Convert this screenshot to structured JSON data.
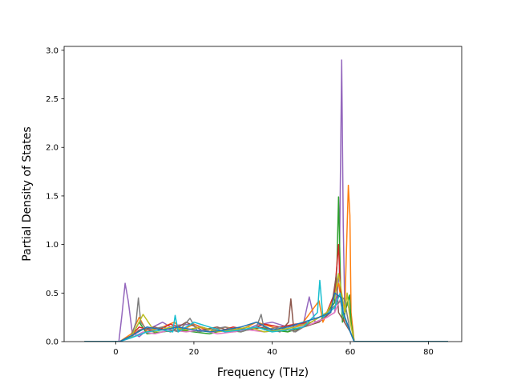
{
  "chart_data": {
    "type": "line",
    "title": "",
    "xlabel": "Frequency (THz)",
    "ylabel": "Partial Density of States",
    "xlim": [
      -13.2,
      88.5
    ],
    "ylim": [
      0,
      3.04
    ],
    "x_ticks": [
      0,
      20,
      40,
      60,
      80
    ],
    "x_tick_labels": [
      "0",
      "20",
      "40",
      "60",
      "80"
    ],
    "y_ticks": [
      0.0,
      0.5,
      1.0,
      1.5,
      2.0,
      2.5,
      3.0
    ],
    "y_tick_labels": [
      "0.0",
      "0.5",
      "1.0",
      "1.5",
      "2.0",
      "2.5",
      "3.0"
    ],
    "grid": false,
    "legend": "none",
    "colors": [
      "#1f77b4",
      "#ff7f0e",
      "#2ca02c",
      "#d62728",
      "#9467bd",
      "#8c564b",
      "#e377c2",
      "#7f7f7f",
      "#bcbd22",
      "#17becf"
    ],
    "x_range_plotted": [
      -8,
      85
    ],
    "series": [
      {
        "color": "#9467bd",
        "x": [
          -8,
          0.8,
          1.6,
          2.4,
          3.2,
          4.2,
          6,
          8,
          12,
          14,
          16,
          20,
          24,
          28,
          32,
          36,
          40,
          44,
          48,
          49.5,
          51,
          54,
          56,
          57.2,
          57.8,
          58.2,
          58.6,
          59.2,
          60,
          61,
          85
        ],
        "y": [
          0,
          0,
          0.28,
          0.6,
          0.42,
          0.1,
          0.05,
          0.12,
          0.2,
          0.15,
          0.17,
          0.18,
          0.12,
          0.15,
          0.1,
          0.17,
          0.2,
          0.15,
          0.18,
          0.46,
          0.2,
          0.25,
          0.3,
          0.7,
          2.9,
          1.2,
          0.3,
          0.4,
          0.3,
          0,
          0
        ]
      },
      {
        "color": "#ff7f0e",
        "x": [
          -8,
          1,
          4,
          6,
          8,
          12,
          15,
          17,
          20,
          24,
          28,
          32,
          36,
          40,
          44,
          48,
          52,
          53,
          55,
          57,
          58.5,
          59.5,
          59.9,
          60.2,
          61,
          85
        ],
        "y": [
          0,
          0,
          0.08,
          0.25,
          0.1,
          0.15,
          0.2,
          0.12,
          0.18,
          0.1,
          0.15,
          0.12,
          0.2,
          0.15,
          0.1,
          0.2,
          0.42,
          0.2,
          0.38,
          0.6,
          0.2,
          1.61,
          1.3,
          0.3,
          0,
          0
        ]
      },
      {
        "color": "#2ca02c",
        "x": [
          -8,
          1,
          4,
          6,
          8,
          12,
          16,
          20,
          24,
          28,
          32,
          36,
          40,
          44,
          48,
          52,
          54,
          56,
          56.6,
          57,
          57.5,
          58,
          59.8,
          60.2,
          61,
          85
        ],
        "y": [
          0,
          0,
          0.05,
          0.2,
          0.08,
          0.1,
          0.12,
          0.1,
          0.08,
          0.12,
          0.1,
          0.15,
          0.12,
          0.1,
          0.15,
          0.2,
          0.3,
          0.4,
          0.8,
          1.49,
          0.6,
          0.2,
          0.48,
          0.2,
          0,
          0
        ]
      },
      {
        "color": "#d62728",
        "x": [
          -8,
          1,
          4,
          6,
          10,
          14,
          18,
          22,
          26,
          30,
          34,
          38,
          42,
          46,
          50,
          54,
          56,
          57,
          57.6,
          58,
          60,
          61,
          85
        ],
        "y": [
          0,
          0,
          0.06,
          0.15,
          0.1,
          0.18,
          0.12,
          0.15,
          0.1,
          0.15,
          0.12,
          0.18,
          0.15,
          0.18,
          0.2,
          0.3,
          0.5,
          1.0,
          0.4,
          0.3,
          0.1,
          0,
          0
        ]
      },
      {
        "color": "#8c564b",
        "x": [
          -8,
          1,
          4,
          6,
          10,
          14,
          18,
          22,
          26,
          30,
          34,
          38,
          42,
          44.2,
          44.8,
          45.6,
          48,
          52,
          55,
          56.4,
          57,
          60,
          61,
          85
        ],
        "y": [
          0,
          0,
          0.05,
          0.12,
          0.15,
          0.1,
          0.2,
          0.12,
          0.15,
          0.1,
          0.12,
          0.15,
          0.1,
          0.2,
          0.44,
          0.1,
          0.15,
          0.2,
          0.3,
          0.68,
          0.3,
          0.1,
          0,
          0
        ]
      },
      {
        "color": "#e377c2",
        "x": [
          -8,
          1,
          4,
          7,
          10,
          14,
          18,
          22,
          26,
          30,
          34,
          38,
          42,
          46,
          50,
          54,
          56,
          57.6,
          58,
          60,
          61,
          85
        ],
        "y": [
          0,
          0,
          0.04,
          0.1,
          0.08,
          0.12,
          0.1,
          0.12,
          0.08,
          0.1,
          0.12,
          0.1,
          0.12,
          0.15,
          0.18,
          0.25,
          0.3,
          0.45,
          0.3,
          0.1,
          0,
          0
        ]
      },
      {
        "color": "#7f7f7f",
        "x": [
          -8,
          1,
          4,
          5.2,
          5.8,
          6.4,
          8,
          12,
          16,
          19,
          21,
          24,
          28,
          32,
          36,
          37.2,
          38,
          42,
          46,
          50,
          54,
          57,
          58.4,
          60,
          61,
          85
        ],
        "y": [
          0,
          0,
          0.06,
          0.2,
          0.45,
          0.2,
          0.12,
          0.15,
          0.1,
          0.24,
          0.1,
          0.12,
          0.15,
          0.1,
          0.15,
          0.28,
          0.12,
          0.15,
          0.1,
          0.2,
          0.3,
          0.4,
          0.45,
          0.1,
          0,
          0
        ]
      },
      {
        "color": "#bcbd22",
        "x": [
          -8,
          1,
          4,
          7,
          10,
          14,
          18,
          22,
          26,
          30,
          34,
          38,
          42,
          46,
          50,
          54,
          56,
          57,
          58.6,
          59.2,
          60,
          61,
          85
        ],
        "y": [
          0,
          0,
          0.05,
          0.28,
          0.1,
          0.15,
          0.12,
          0.15,
          0.1,
          0.12,
          0.15,
          0.1,
          0.12,
          0.15,
          0.2,
          0.3,
          0.45,
          0.7,
          0.3,
          0.5,
          0.2,
          0,
          0
        ]
      },
      {
        "color": "#17becf",
        "x": [
          -8,
          1,
          4,
          8,
          12,
          14.6,
          15.2,
          16,
          20,
          24,
          28,
          32,
          36,
          40,
          44,
          48,
          51.6,
          52.2,
          53,
          56,
          57.4,
          58,
          60,
          61,
          85
        ],
        "y": [
          0,
          0,
          0.04,
          0.1,
          0.12,
          0.1,
          0.27,
          0.1,
          0.2,
          0.15,
          0.1,
          0.12,
          0.15,
          0.1,
          0.12,
          0.15,
          0.3,
          0.63,
          0.25,
          0.35,
          0.5,
          0.3,
          0.1,
          0,
          0
        ]
      },
      {
        "color": "#1f77b4",
        "x": [
          -8,
          1,
          4,
          8,
          12,
          16,
          20,
          24,
          28,
          32,
          36,
          40,
          44,
          48,
          52,
          55,
          56,
          57.8,
          58.2,
          60,
          61,
          85
        ],
        "y": [
          0,
          0,
          0.06,
          0.15,
          0.12,
          0.15,
          0.12,
          0.1,
          0.12,
          0.15,
          0.2,
          0.12,
          0.15,
          0.2,
          0.25,
          0.3,
          0.5,
          0.45,
          0.3,
          0.1,
          0,
          0
        ]
      }
    ]
  }
}
